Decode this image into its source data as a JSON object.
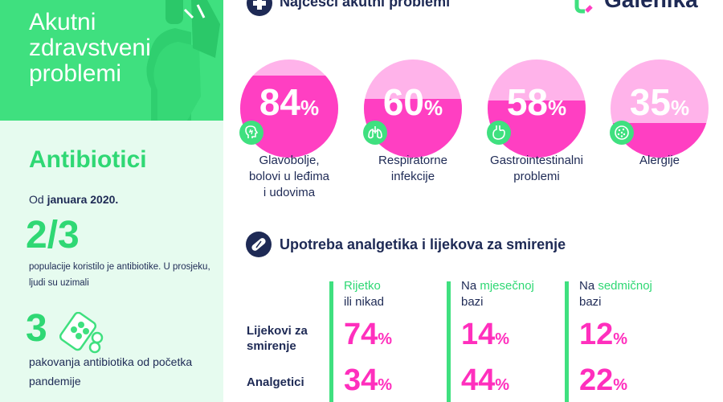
{
  "header": {
    "title_lines": [
      "Akutni",
      "zdravstveni",
      "problemi"
    ]
  },
  "antibiotics": {
    "title": "Antibiotici",
    "since_prefix": "Od",
    "since_bold": "januara 2020.",
    "fraction": "2/3",
    "fraction_text": "populacije koristilo je antibiotike. U prosjeku, ljudi su uzimali",
    "packs": "3",
    "packs_text": "pakovanja antibiotika od početka pandemije"
  },
  "brand": {
    "name": "Galenika",
    "color": "#1e2a55"
  },
  "section_acute": {
    "title": "Najčešći akutni problemi",
    "icon": "plus-cross-icon",
    "items": [
      {
        "value": 84,
        "label_lines": [
          "Glavobolje,",
          "bolovi u leđima",
          "i udovima"
        ],
        "icon": "head-icon"
      },
      {
        "value": 60,
        "label_lines": [
          "Respiratorne",
          "infekcije"
        ],
        "icon": "lungs-icon"
      },
      {
        "value": 58,
        "label_lines": [
          "Gastrointestinalni",
          "problemi"
        ],
        "icon": "stomach-icon"
      },
      {
        "value": 35,
        "label_lines": [
          "Alergije"
        ],
        "icon": "allergen-icon"
      }
    ]
  },
  "section_usage": {
    "title": "Upotreba analgetika i lijekova za smirenje",
    "icon": "capsule-icon",
    "columns": [
      {
        "prefix": "",
        "highlight": "Rijetko",
        "line2": "ili nikad"
      },
      {
        "prefix": "Na ",
        "highlight": "mjesečnoj",
        "line2": "bazi"
      },
      {
        "prefix": "Na ",
        "highlight": "sedmičnoj",
        "line2": "bazi"
      }
    ],
    "rows": [
      {
        "label_lines": [
          "Lijekovi za",
          "smirenje"
        ],
        "values": [
          74,
          14,
          12
        ]
      },
      {
        "label_lines": [
          "Analgetici"
        ],
        "values": [
          34,
          44,
          22
        ]
      }
    ],
    "percent_sign": "%"
  },
  "colors": {
    "green": "#3fe07f",
    "mint": "#e6fbef",
    "navy": "#1e2a55",
    "magenta": "#ff3fc2",
    "pink_light": "#ffb3ea"
  }
}
